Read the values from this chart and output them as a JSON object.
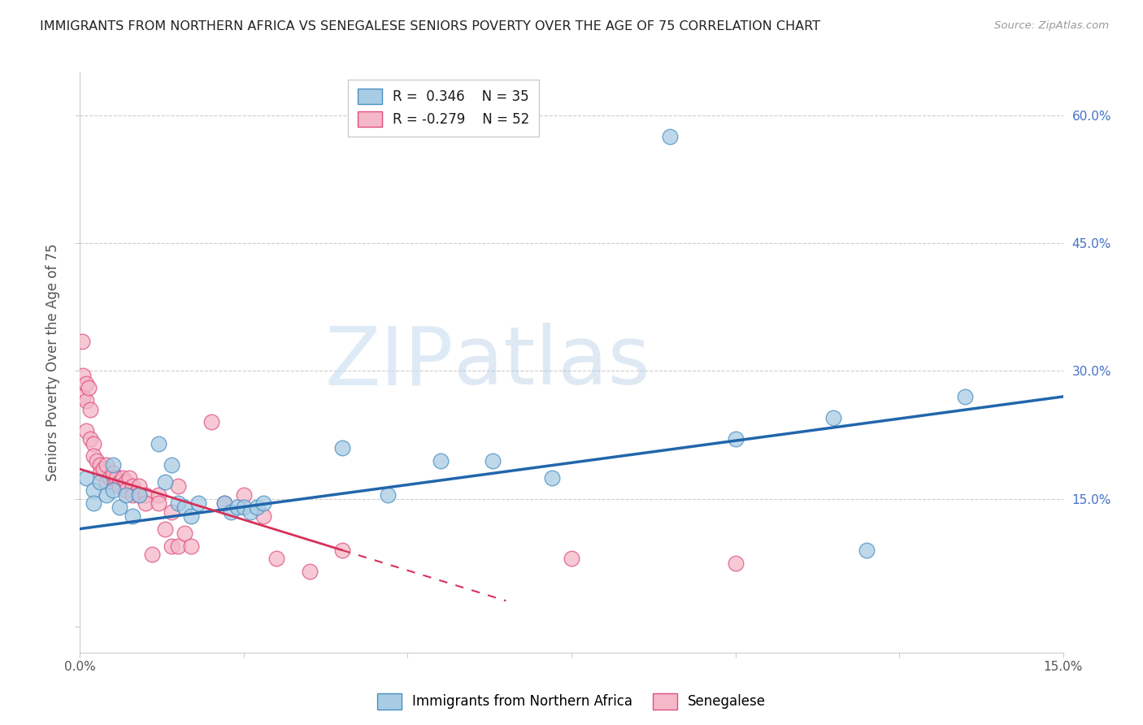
{
  "title": "IMMIGRANTS FROM NORTHERN AFRICA VS SENEGALESE SENIORS POVERTY OVER THE AGE OF 75 CORRELATION CHART",
  "source": "Source: ZipAtlas.com",
  "ylabel": "Seniors Poverty Over the Age of 75",
  "xmin": 0.0,
  "xmax": 0.15,
  "ymin": -0.03,
  "ymax": 0.65,
  "watermark_zip": "ZIP",
  "watermark_atlas": "atlas",
  "legend_r1": "R =  0.346",
  "legend_n1": "N = 35",
  "legend_r2": "R = -0.279",
  "legend_n2": "N = 52",
  "blue_color": "#a8cce4",
  "pink_color": "#f4b8c8",
  "blue_edge_color": "#4a90c4",
  "pink_edge_color": "#e05080",
  "blue_line_color": "#2166ac",
  "pink_line_color": "#d6315a",
  "grid_color": "#cccccc",
  "blue_scatter": [
    [
      0.001,
      0.175
    ],
    [
      0.002,
      0.16
    ],
    [
      0.002,
      0.145
    ],
    [
      0.003,
      0.17
    ],
    [
      0.004,
      0.155
    ],
    [
      0.005,
      0.19
    ],
    [
      0.005,
      0.16
    ],
    [
      0.006,
      0.14
    ],
    [
      0.007,
      0.155
    ],
    [
      0.008,
      0.13
    ],
    [
      0.009,
      0.155
    ],
    [
      0.012,
      0.215
    ],
    [
      0.013,
      0.17
    ],
    [
      0.014,
      0.19
    ],
    [
      0.015,
      0.145
    ],
    [
      0.016,
      0.14
    ],
    [
      0.017,
      0.13
    ],
    [
      0.018,
      0.145
    ],
    [
      0.022,
      0.145
    ],
    [
      0.023,
      0.135
    ],
    [
      0.024,
      0.14
    ],
    [
      0.025,
      0.14
    ],
    [
      0.026,
      0.135
    ],
    [
      0.027,
      0.14
    ],
    [
      0.028,
      0.145
    ],
    [
      0.04,
      0.21
    ],
    [
      0.047,
      0.155
    ],
    [
      0.055,
      0.195
    ],
    [
      0.063,
      0.195
    ],
    [
      0.072,
      0.175
    ],
    [
      0.09,
      0.575
    ],
    [
      0.1,
      0.22
    ],
    [
      0.115,
      0.245
    ],
    [
      0.12,
      0.09
    ],
    [
      0.135,
      0.27
    ]
  ],
  "pink_scatter": [
    [
      0.0003,
      0.335
    ],
    [
      0.0005,
      0.295
    ],
    [
      0.0005,
      0.27
    ],
    [
      0.001,
      0.285
    ],
    [
      0.001,
      0.265
    ],
    [
      0.001,
      0.23
    ],
    [
      0.0013,
      0.28
    ],
    [
      0.0015,
      0.255
    ],
    [
      0.0015,
      0.22
    ],
    [
      0.002,
      0.215
    ],
    [
      0.002,
      0.2
    ],
    [
      0.0025,
      0.195
    ],
    [
      0.003,
      0.19
    ],
    [
      0.003,
      0.18
    ],
    [
      0.0035,
      0.185
    ],
    [
      0.004,
      0.19
    ],
    [
      0.004,
      0.17
    ],
    [
      0.0045,
      0.175
    ],
    [
      0.005,
      0.175
    ],
    [
      0.005,
      0.18
    ],
    [
      0.0055,
      0.175
    ],
    [
      0.006,
      0.17
    ],
    [
      0.006,
      0.165
    ],
    [
      0.0065,
      0.175
    ],
    [
      0.007,
      0.17
    ],
    [
      0.007,
      0.16
    ],
    [
      0.0075,
      0.175
    ],
    [
      0.008,
      0.165
    ],
    [
      0.008,
      0.155
    ],
    [
      0.009,
      0.165
    ],
    [
      0.009,
      0.155
    ],
    [
      0.01,
      0.155
    ],
    [
      0.01,
      0.145
    ],
    [
      0.011,
      0.085
    ],
    [
      0.012,
      0.155
    ],
    [
      0.012,
      0.145
    ],
    [
      0.013,
      0.115
    ],
    [
      0.014,
      0.135
    ],
    [
      0.014,
      0.095
    ],
    [
      0.015,
      0.165
    ],
    [
      0.015,
      0.095
    ],
    [
      0.016,
      0.11
    ],
    [
      0.017,
      0.095
    ],
    [
      0.02,
      0.24
    ],
    [
      0.022,
      0.145
    ],
    [
      0.025,
      0.155
    ],
    [
      0.028,
      0.13
    ],
    [
      0.03,
      0.08
    ],
    [
      0.035,
      0.065
    ],
    [
      0.04,
      0.09
    ],
    [
      0.075,
      0.08
    ],
    [
      0.1,
      0.075
    ]
  ],
  "blue_line_x": [
    0.0,
    0.15
  ],
  "blue_line_y": [
    0.115,
    0.27
  ],
  "pink_line_x": [
    0.0,
    0.04
  ],
  "pink_line_y": [
    0.185,
    0.09
  ]
}
